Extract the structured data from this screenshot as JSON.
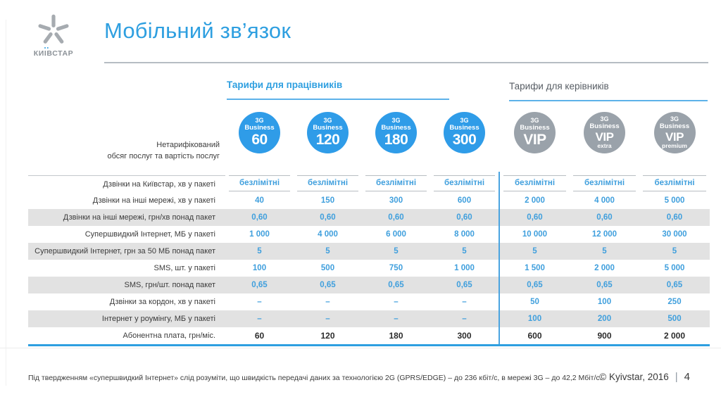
{
  "logo": {
    "brand": "КИЇВСТАР",
    "brand_parts": [
      "КИ",
      "І",
      "ВСТАР"
    ]
  },
  "header": {
    "title": "Мобільний зв’язок"
  },
  "sections": {
    "employees": "Тарифи для працівників",
    "managers": "Тарифи для керівників"
  },
  "plans": [
    {
      "top": "3G",
      "mid": "Business",
      "big": "60",
      "sub": "",
      "variant": "blue"
    },
    {
      "top": "3G",
      "mid": "Business",
      "big": "120",
      "sub": "",
      "variant": "blue"
    },
    {
      "top": "3G",
      "mid": "Business",
      "big": "180",
      "sub": "",
      "variant": "blue"
    },
    {
      "top": "3G",
      "mid": "Business",
      "big": "300",
      "sub": "",
      "variant": "blue"
    },
    {
      "top": "3G",
      "mid": "Business",
      "big": "VIP",
      "sub": "",
      "variant": "gray"
    },
    {
      "top": "3G",
      "mid": "Business",
      "big": "VIP",
      "sub": "extra",
      "variant": "gray"
    },
    {
      "top": "3G",
      "mid": "Business",
      "big": "VIP",
      "sub": "premium",
      "variant": "gray"
    }
  ],
  "corner_label": {
    "line1": "Нетарифікований",
    "line2": "обсяг послуг та вартість послуг"
  },
  "table": {
    "rows": [
      {
        "label": "Дзвінки на Київстар, хв у пакеті",
        "values": [
          "безлімітні",
          "безлімітні",
          "безлімітні",
          "безлімітні",
          "безлімітні",
          "безлімітні",
          "безлімітні"
        ],
        "shaded": false,
        "boxed": true,
        "dark": false
      },
      {
        "label": "Дзвінки на інші мережі, хв у пакеті",
        "values": [
          "40",
          "150",
          "300",
          "600",
          "2 000",
          "4 000",
          "5 000"
        ],
        "shaded": false,
        "boxed": false,
        "dark": false
      },
      {
        "label": "Дзвінки на інші мережі, грн/хв понад пакет",
        "values": [
          "0,60",
          "0,60",
          "0,60",
          "0,60",
          "0,60",
          "0,60",
          "0,60"
        ],
        "shaded": true,
        "boxed": false,
        "dark": false
      },
      {
        "label": "Супершвидкий Інтернет, МБ у пакеті",
        "values": [
          "1 000",
          "4 000",
          "6 000",
          "8 000",
          "10 000",
          "12 000",
          "30 000"
        ],
        "shaded": false,
        "boxed": false,
        "dark": false
      },
      {
        "label": "Супершвидкий Інтернет, грн за 50 МБ понад пакет",
        "values": [
          "5",
          "5",
          "5",
          "5",
          "5",
          "5",
          "5"
        ],
        "shaded": true,
        "boxed": false,
        "dark": false
      },
      {
        "label": "SMS, шт. у пакеті",
        "values": [
          "100",
          "500",
          "750",
          "1 000",
          "1 500",
          "2 000",
          "5 000"
        ],
        "shaded": false,
        "boxed": false,
        "dark": false
      },
      {
        "label": "SMS, грн/шт. понад пакет",
        "values": [
          "0,65",
          "0,65",
          "0,65",
          "0,65",
          "0,65",
          "0,65",
          "0,65"
        ],
        "shaded": true,
        "boxed": false,
        "dark": false
      },
      {
        "label": "Дзвінки за кордон, хв у пакеті",
        "values": [
          "–",
          "–",
          "–",
          "–",
          "50",
          "100",
          "250"
        ],
        "shaded": false,
        "boxed": false,
        "dark": false
      },
      {
        "label": "Інтернет у роумінгу, МБ у пакеті",
        "values": [
          "–",
          "–",
          "–",
          "–",
          "100",
          "200",
          "500"
        ],
        "shaded": true,
        "boxed": false,
        "dark": false
      },
      {
        "label": "Абонентна плата, грн/міс.",
        "values": [
          "60",
          "120",
          "180",
          "300",
          "600",
          "900",
          "2 000"
        ],
        "shaded": false,
        "boxed": false,
        "dark": true
      }
    ]
  },
  "footnote": "Під твердженням «супершвидкий Інтернет» слід розуміти, що швидкість передачі даних за технологією 2G (GPRS/EDGE) – до 236 кбіт/с, в мережі 3G – до 42,2 Мбіт/с.",
  "footer": {
    "copyright": "© Kyivstar, 2016",
    "separator": "|",
    "page": "4"
  },
  "colors": {
    "accent_blue": "#2e9fe0",
    "circle_blue": "#2f9ce8",
    "circle_gray": "#9aa2aa",
    "value_blue": "#3f9fdd",
    "row_shade": "#e2e2e2"
  }
}
